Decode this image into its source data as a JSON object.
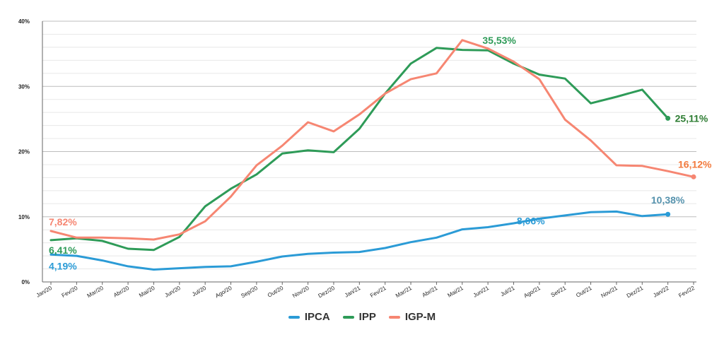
{
  "chart_data": {
    "type": "line",
    "title": "",
    "xlabel": "",
    "ylabel": "",
    "ylim": [
      0,
      40
    ],
    "y_ticks": [
      "0%",
      "10%",
      "20%",
      "30%",
      "40%"
    ],
    "y_tick_values": [
      0,
      10,
      20,
      30,
      40
    ],
    "categories": [
      "Jan/20",
      "Fev/20",
      "Mar/20",
      "Abr/20",
      "Mai/20",
      "Jun/20",
      "Jul/20",
      "Ago/20",
      "Sep/20",
      "Out/20",
      "Nov/20",
      "Dez/20",
      "Jan/21",
      "Fev/21",
      "Mar/21",
      "Abr/21",
      "Mai/21",
      "Jun/21",
      "Jul/21",
      "Ago/21",
      "Set/21",
      "Out/21",
      "Nov/21",
      "Dez/21",
      "Jan/22",
      "Fev/22"
    ],
    "grid": true,
    "legend_position": "bottom-center",
    "series": [
      {
        "name": "IPCA",
        "color": "#2b9bd6",
        "values": [
          4.19,
          4.0,
          3.3,
          2.4,
          1.9,
          2.1,
          2.3,
          2.4,
          3.1,
          3.9,
          4.3,
          4.5,
          4.6,
          5.2,
          6.1,
          6.8,
          8.06,
          8.4,
          9.0,
          9.7,
          10.2,
          10.7,
          10.8,
          10.1,
          10.38,
          null
        ]
      },
      {
        "name": "IPP",
        "color": "#2e9b58",
        "values": [
          6.41,
          6.7,
          6.3,
          5.1,
          4.9,
          6.9,
          11.6,
          14.3,
          16.5,
          19.7,
          20.2,
          19.9,
          23.5,
          28.9,
          33.5,
          35.9,
          35.6,
          35.53,
          33.5,
          31.8,
          31.2,
          27.4,
          28.4,
          29.5,
          25.11,
          null
        ]
      },
      {
        "name": "IGP-M",
        "color": "#f68672",
        "values": [
          7.82,
          6.8,
          6.8,
          6.7,
          6.5,
          7.3,
          9.3,
          13.1,
          17.9,
          20.9,
          24.5,
          23.1,
          25.7,
          28.9,
          31.1,
          32.0,
          37.1,
          35.8,
          33.8,
          31.1,
          24.9,
          21.7,
          17.9,
          17.8,
          17.0,
          16.12
        ]
      }
    ],
    "annotations": [
      {
        "series": "IGP-M",
        "index": 0,
        "text": "7,82%",
        "color": "#f68672"
      },
      {
        "series": "IPP",
        "index": 0,
        "text": "6,41%",
        "color": "#2e9b58"
      },
      {
        "series": "IPCA",
        "index": 0,
        "text": "4,19%",
        "color": "#2b9bd6"
      },
      {
        "series": "IPCA",
        "index": 16,
        "text": "8,06%",
        "color": "#2b9bd6"
      },
      {
        "series": "IPP",
        "index": 17,
        "text": "35,53%",
        "color": "#2e9b58"
      },
      {
        "series": "IPP",
        "index": 24,
        "text": "25,11%",
        "color": "#2e7d33"
      },
      {
        "series": "IGP-M",
        "index": 25,
        "text": "16,12%",
        "color": "#f27a3d"
      },
      {
        "series": "IPCA",
        "index": 24,
        "text": "10,38%",
        "color": "#5592ad"
      }
    ]
  }
}
